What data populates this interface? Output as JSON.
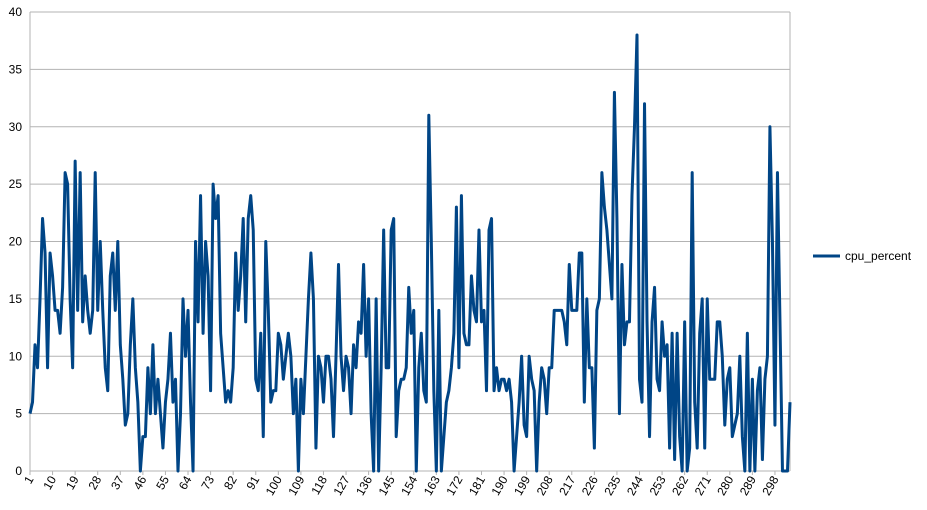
{
  "chart_data": {
    "type": "line",
    "categories": [
      1,
      null,
      null,
      null,
      null,
      null,
      null,
      null,
      null,
      10,
      null,
      null,
      null,
      null,
      null,
      null,
      null,
      null,
      19,
      null,
      null,
      null,
      null,
      null,
      null,
      null,
      null,
      28,
      null,
      null,
      null,
      null,
      null,
      null,
      null,
      null,
      37,
      null,
      null,
      null,
      null,
      null,
      null,
      null,
      null,
      46,
      null,
      null,
      null,
      null,
      null,
      null,
      null,
      null,
      55,
      null,
      null,
      null,
      null,
      null,
      null,
      null,
      null,
      64,
      null,
      null,
      null,
      null,
      null,
      null,
      null,
      null,
      73,
      null,
      null,
      null,
      null,
      null,
      null,
      null,
      null,
      82,
      null,
      null,
      null,
      null,
      null,
      null,
      null,
      null,
      91,
      null,
      null,
      null,
      null,
      null,
      null,
      null,
      null,
      100,
      null,
      null,
      null,
      null,
      null,
      null,
      null,
      null,
      109,
      null,
      null,
      null,
      null,
      null,
      null,
      null,
      null,
      118,
      null,
      null,
      null,
      null,
      null,
      null,
      null,
      null,
      127,
      null,
      null,
      null,
      null,
      null,
      null,
      null,
      null,
      136,
      null,
      null,
      null,
      null,
      null,
      null,
      null,
      null,
      145,
      null,
      null,
      null,
      null,
      null,
      null,
      null,
      null,
      154,
      null,
      null,
      null,
      null,
      null,
      null,
      null,
      null,
      163,
      null,
      null,
      null,
      null,
      null,
      null,
      null,
      null,
      172,
      null,
      null,
      null,
      null,
      null,
      null,
      null,
      null,
      181,
      null,
      null,
      null,
      null,
      null,
      null,
      null,
      null,
      190,
      null,
      null,
      null,
      null,
      null,
      null,
      null,
      null,
      199,
      null,
      null,
      null,
      null,
      null,
      null,
      null,
      null,
      208,
      null,
      null,
      null,
      null,
      null,
      null,
      null,
      null,
      217,
      null,
      null,
      null,
      null,
      null,
      null,
      null,
      null,
      226,
      null,
      null,
      null,
      null,
      null,
      null,
      null,
      null,
      235,
      null,
      null,
      null,
      null,
      null,
      null,
      null,
      null,
      244,
      null,
      null,
      null,
      null,
      null,
      null,
      null,
      null,
      253,
      null,
      null,
      null,
      null,
      null,
      null,
      null,
      null,
      262,
      null,
      null,
      null,
      null,
      null,
      null,
      null,
      null,
      271,
      null,
      null,
      null,
      null,
      null,
      null,
      null,
      null,
      280,
      null,
      null,
      null,
      null,
      null,
      null,
      null,
      null,
      289,
      null,
      null,
      null,
      null,
      null,
      null,
      null,
      null,
      298,
      null,
      null,
      null,
      null,
      null,
      null
    ],
    "series": [
      {
        "name": "cpu_percent",
        "color": "#004586",
        "values": [
          5,
          6,
          11,
          9,
          15,
          22,
          19,
          9,
          19,
          17,
          14,
          14,
          12,
          16,
          26,
          25,
          15,
          9,
          27,
          14,
          26,
          13,
          17,
          14,
          12,
          14,
          26,
          14,
          20,
          14,
          9,
          7,
          17,
          19,
          14,
          20,
          11,
          8,
          4,
          5,
          11,
          15,
          9,
          6,
          0,
          3,
          3,
          9,
          5,
          11,
          5,
          8,
          5,
          2,
          6,
          8,
          12,
          6,
          8,
          0,
          5,
          15,
          10,
          14,
          6,
          0,
          20,
          13,
          24,
          12,
          20,
          17,
          7,
          25,
          22,
          24,
          12,
          9,
          6,
          7,
          6,
          9,
          19,
          14,
          17,
          22,
          13,
          22,
          24,
          21,
          8,
          7,
          12,
          3,
          20,
          14,
          6,
          7,
          7,
          12,
          11,
          8,
          10,
          12,
          10,
          5,
          8,
          0,
          8,
          5,
          10,
          15,
          19,
          15,
          2,
          10,
          9,
          6,
          10,
          10,
          8,
          3,
          10,
          18,
          10,
          7,
          10,
          9,
          5,
          11,
          9,
          13,
          12,
          18,
          10,
          15,
          5,
          0,
          15,
          0,
          9,
          21,
          9,
          9,
          21,
          22,
          3,
          7,
          8,
          8,
          9,
          16,
          12,
          14,
          0,
          9,
          12,
          7,
          6,
          31,
          20,
          7,
          0,
          14,
          0,
          3,
          6,
          7,
          9,
          12,
          23,
          9,
          24,
          12,
          11,
          11,
          17,
          14,
          13,
          21,
          13,
          14,
          7,
          21,
          22,
          7,
          9,
          7,
          8,
          8,
          7,
          8,
          6,
          0,
          3,
          6,
          10,
          4,
          3,
          10,
          8,
          7,
          0,
          6,
          9,
          8,
          5,
          9,
          9,
          14,
          14,
          14,
          14,
          13,
          11,
          18,
          14,
          14,
          14,
          19,
          19,
          6,
          15,
          9,
          9,
          2,
          14,
          15,
          26,
          23,
          21,
          18,
          15,
          33,
          22,
          5,
          18,
          11,
          13,
          13,
          24,
          30,
          38,
          8,
          6,
          32,
          13,
          3,
          13,
          16,
          8,
          7,
          13,
          10,
          11,
          2,
          12,
          1,
          12,
          3,
          0,
          13,
          0,
          2,
          26,
          6,
          2,
          12,
          15,
          2,
          15,
          8,
          8,
          8,
          13,
          13,
          10,
          4,
          8,
          9,
          3,
          4,
          5,
          10,
          3,
          0,
          12,
          0,
          8,
          0,
          7,
          9,
          1,
          8,
          10,
          30,
          20,
          4,
          26,
          13,
          0,
          0,
          0,
          6
        ]
      }
    ],
    "ylim": [
      0,
      40
    ],
    "yticks": [
      0,
      5,
      10,
      15,
      20,
      25,
      30,
      35,
      40
    ],
    "grid": true,
    "legend": "right"
  }
}
